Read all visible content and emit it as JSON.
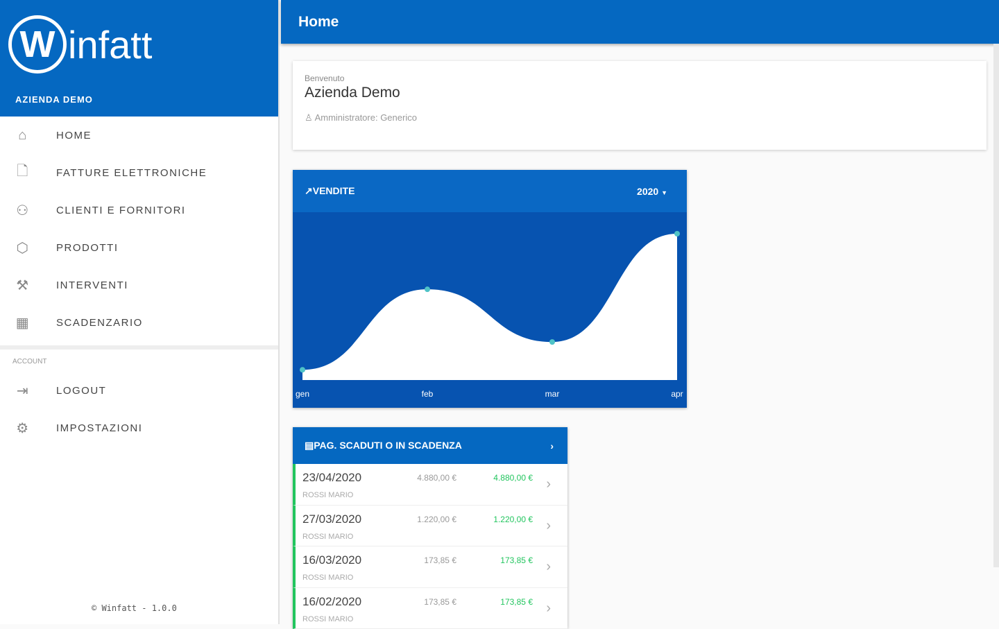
{
  "sidebar": {
    "logo_text": "Winfatt",
    "company": "AZIENDA DEMO",
    "items": [
      {
        "label": "HOME",
        "icon": "home-icon"
      },
      {
        "label": "FATTURE ELETTRONICHE",
        "icon": "document-icon"
      },
      {
        "label": "CLIENTI E FORNITORI",
        "icon": "users-icon"
      },
      {
        "label": "PRODOTTI",
        "icon": "box-icon"
      },
      {
        "label": "INTERVENTI",
        "icon": "tools-icon"
      },
      {
        "label": "SCADENZARIO",
        "icon": "calendar-icon"
      }
    ],
    "section": "ACCOUNT",
    "account_items": [
      {
        "label": "LOGOUT",
        "icon": "logout-icon"
      },
      {
        "label": "IMPOSTAZIONI",
        "icon": "gear-icon"
      }
    ],
    "footer": "© Winfatt - 1.0.0"
  },
  "header": {
    "title": "Home"
  },
  "welcome": {
    "greeting": "Benvenuto",
    "name": "Azienda Demo",
    "role": "Amministratore: Generico"
  },
  "sales": {
    "title": "VENDITE",
    "year": "2020"
  },
  "chart_data": {
    "type": "area",
    "categories": [
      "gen",
      "feb",
      "mar",
      "apr"
    ],
    "values": [
      7,
      62,
      26,
      100
    ],
    "ylim": [
      0,
      100
    ],
    "grid": false,
    "colors": {
      "fill": "#ffffff",
      "point": "#4fc3c7",
      "background": "#0753b0"
    }
  },
  "payments": {
    "title": "PAG. SCADUTI O IN SCADENZA",
    "rows": [
      {
        "date": "23/04/2020",
        "name": "ROSSI MARIO",
        "amount": "4.880,00 €",
        "due": "4.880,00 €"
      },
      {
        "date": "27/03/2020",
        "name": "ROSSI MARIO",
        "amount": "1.220,00 €",
        "due": "1.220,00 €"
      },
      {
        "date": "16/03/2020",
        "name": "ROSSI MARIO",
        "amount": "173,85 €",
        "due": "173,85 €"
      },
      {
        "date": "16/02/2020",
        "name": "ROSSI MARIO",
        "amount": "173,85 €",
        "due": "173,85 €"
      }
    ]
  }
}
